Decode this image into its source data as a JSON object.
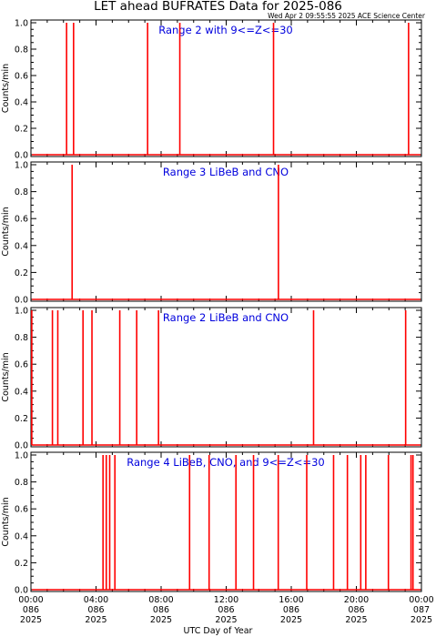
{
  "header": {
    "title": "LET ahead BUFRATES Data for 2025-086",
    "timestamp": "Wed Apr  2 09:55:55 2025 ACE Science Center"
  },
  "colors": {
    "series": "#ff0000",
    "panel_title": "#0000dd",
    "axis": "#000000"
  },
  "chart_data": [
    {
      "type": "line",
      "title": "Range 2 with 9<=Z<=30",
      "ylabel": "Counts/min",
      "xlim": [
        0,
        24
      ],
      "ylim": [
        0,
        1
      ],
      "yticks": [
        "0.0",
        "0.2",
        "0.4",
        "0.6",
        "0.8",
        "1.0"
      ],
      "spikes_hours": [
        2.19,
        2.62,
        7.17,
        9.15,
        14.91,
        23.21
      ],
      "spike_value": 1.0
    },
    {
      "type": "line",
      "title": "Range 3 LiBeB and CNO",
      "ylabel": "Counts/min",
      "xlim": [
        0,
        24
      ],
      "ylim": [
        0,
        1
      ],
      "yticks": [
        "0.0",
        "0.2",
        "0.4",
        "0.6",
        "0.8",
        "1.0"
      ],
      "spikes_hours": [
        2.53,
        15.21
      ],
      "spike_value": 1.0
    },
    {
      "type": "line",
      "title": "Range 2 LiBeB and CNO",
      "ylabel": "Counts/min",
      "xlim": [
        0,
        24
      ],
      "ylim": [
        0,
        1
      ],
      "yticks": [
        "0.0",
        "0.2",
        "0.4",
        "0.6",
        "0.8",
        "1.0"
      ],
      "spikes_hours": [
        0.05,
        1.32,
        1.65,
        3.2,
        3.75,
        5.46,
        6.5,
        7.84,
        17.37,
        23.03
      ],
      "spike_value": 1.0
    },
    {
      "type": "line",
      "title": "Range 4 LiBeB, CNO, and 9<=Z<=30",
      "ylabel": "Counts/min",
      "xlim": [
        0,
        24
      ],
      "ylim": [
        0,
        1
      ],
      "yticks": [
        "0.0",
        "0.2",
        "0.4",
        "0.6",
        "0.8",
        "1.0"
      ],
      "spikes_hours": [
        4.43,
        4.63,
        4.84,
        5.16,
        9.75,
        10.95,
        12.6,
        13.68,
        15.2,
        16.95,
        18.6,
        19.45,
        20.27,
        20.58,
        21.97,
        23.36,
        23.48
      ],
      "spike_value": 1.0
    }
  ],
  "x_axis": {
    "label": "UTC Day of Year",
    "ticks": [
      {
        "hour": 0,
        "time": "00:00",
        "doy": "086",
        "year": "2025"
      },
      {
        "hour": 4,
        "time": "04:00",
        "doy": "086",
        "year": "2025"
      },
      {
        "hour": 8,
        "time": "08:00",
        "doy": "086",
        "year": "2025"
      },
      {
        "hour": 12,
        "time": "12:00",
        "doy": "086",
        "year": "2025"
      },
      {
        "hour": 16,
        "time": "16:00",
        "doy": "086",
        "year": "2025"
      },
      {
        "hour": 20,
        "time": "20:00",
        "doy": "086",
        "year": "2025"
      },
      {
        "hour": 24,
        "time": "00:00",
        "doy": "087",
        "year": "2025"
      }
    ]
  }
}
